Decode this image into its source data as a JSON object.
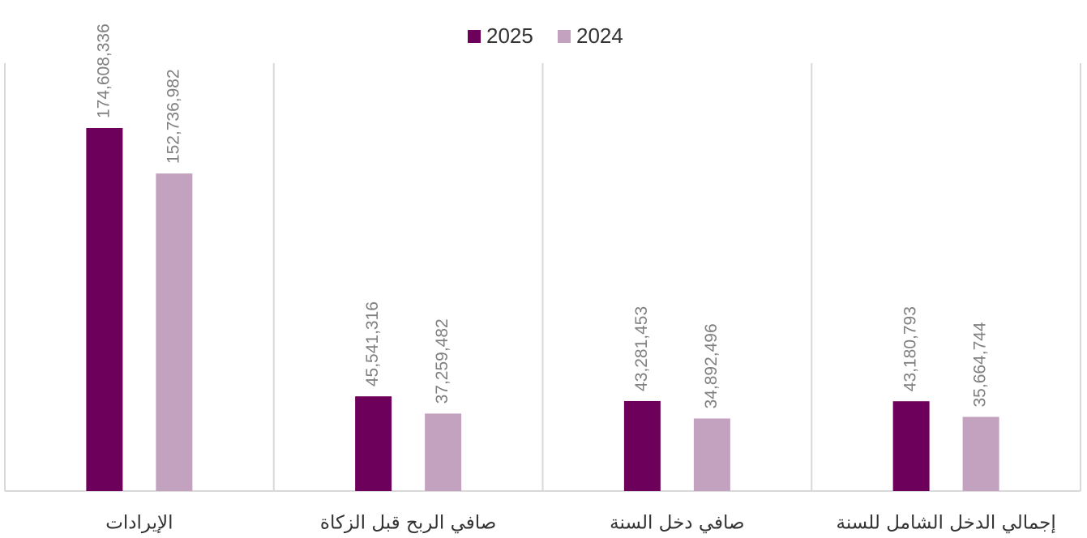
{
  "chart_data": {
    "type": "bar",
    "categories": [
      "الإيرادات",
      "صافي الربح قبل الزكاة",
      "صافي دخل السنة",
      "إجمالي الدخل الشامل للسنة"
    ],
    "series": [
      {
        "name": "2025",
        "color": "#6d005a",
        "values": [
          174608336,
          45541316,
          43281453,
          43180793
        ],
        "value_labels": [
          "174,608,336",
          "45,541,316",
          "43,281,453",
          "43,180,793"
        ]
      },
      {
        "name": "2024",
        "color": "#c3a2c0",
        "values": [
          152736982,
          37259482,
          34892496,
          35664744
        ],
        "value_labels": [
          "152,736,982",
          "37,259,482",
          "34,892,496",
          "35,664,744"
        ]
      }
    ],
    "legend": "top"
  }
}
